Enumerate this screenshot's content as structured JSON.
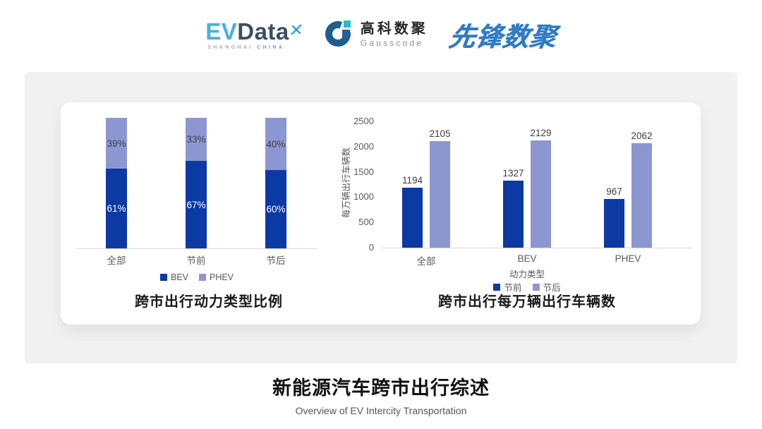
{
  "header": {
    "evdata": {
      "ev": "EV",
      "data": "Data",
      "sub_left": "SHANGHAI",
      "sub_right": "CHINA"
    },
    "gausscode": {
      "cn": "高科数聚",
      "en": "Gausscode"
    },
    "pioneer": {
      "text": "先锋数聚"
    }
  },
  "colors": {
    "series_dark": "#0b3aa5",
    "series_light": "#8c97d2",
    "axis_line": "#d9d9d9",
    "tick_text": "#595959",
    "value_text": "#3d3d3d",
    "chart_title_text": "#1a1a1a"
  },
  "chart_data": [
    {
      "type": "bar",
      "subtype": "stacked-percent",
      "title": "跨市出行动力类型比例",
      "categories": [
        "全部",
        "节前",
        "节后"
      ],
      "series": [
        {
          "name": "BEV",
          "color": "#0b3aa5",
          "values": [
            61,
            67,
            60
          ],
          "labels": [
            "61%",
            "67%",
            "60%"
          ]
        },
        {
          "name": "PHEV",
          "color": "#8c97d2",
          "values": [
            39,
            33,
            40
          ],
          "labels": [
            "39%",
            "33%",
            "40%"
          ]
        }
      ],
      "ylim": [
        0,
        100
      ],
      "legend_position": "bottom",
      "grid": false
    },
    {
      "type": "bar",
      "subtype": "grouped",
      "title": "跨市出行每万辆出行车辆数",
      "categories": [
        "全部",
        "BEV",
        "PHEV"
      ],
      "xlabel": "动力类型",
      "ylabel": "每万辆出行车辆数",
      "ylim": [
        0,
        2500
      ],
      "yticks": [
        0,
        500,
        1000,
        1500,
        2000,
        2500
      ],
      "series": [
        {
          "name": "节前",
          "color": "#0b3aa5",
          "values": [
            1194,
            1327,
            967
          ]
        },
        {
          "name": "节后",
          "color": "#8c97d2",
          "values": [
            2105,
            2129,
            2062
          ]
        }
      ],
      "legend_position": "bottom",
      "grid": false
    }
  ],
  "footer": {
    "title": "新能源汽车跨市出行综述",
    "subtitle": "Overview of EV Intercity Transportation"
  }
}
